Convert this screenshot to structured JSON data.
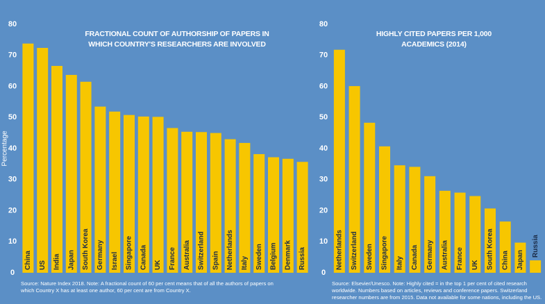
{
  "chart_data": [
    {
      "type": "bar",
      "title": "FRACTIONAL COUNT OF AUTHORSHIP OF PAPERS IN WHICH COUNTRY'S RESEARCHERS ARE INVOLVED",
      "ylabel": "Percentage",
      "categories": [
        "China",
        "US",
        "India",
        "Japan",
        "South Korea",
        "Germany",
        "Israel",
        "Singapore",
        "Canada",
        "UK",
        "France",
        "Australia",
        "Switzerland",
        "Spain",
        "Netherlands",
        "Italy",
        "Sweden",
        "Belgium",
        "Denmark",
        "Russia"
      ],
      "values": [
        73.8,
        72.4,
        66.6,
        63.7,
        61.5,
        53.5,
        51.9,
        50.8,
        50.3,
        50.2,
        46.6,
        45.4,
        45.3,
        45,
        43,
        41.8,
        38.2,
        37.2,
        36.7,
        35.7
      ],
      "color": "#f7c600",
      "ylim": [
        0,
        80
      ],
      "yticks": [
        0,
        10,
        20,
        30,
        40,
        50,
        60,
        70,
        80
      ],
      "source": "Source: Nature Index 2018. Note: A fractional count of 60 per cent means that of all the authors of papers on which Country X has at least one author, 60 per cent are from Country X."
    },
    {
      "type": "bar",
      "title": "HIGHLY CITED PAPERS PER 1,000 ACADEMICS (2014)",
      "categories": [
        "Netherlands",
        "Switzerland",
        "Sweden",
        "Singapore",
        "Italy",
        "Canada",
        "Germany",
        "Australia",
        "France",
        "UK",
        "South Korea",
        "China",
        "Japan",
        "Russia"
      ],
      "values": [
        71.8,
        60.1,
        48.3,
        40.7,
        34.6,
        34.1,
        31.1,
        26.4,
        25.8,
        24.7,
        20.7,
        16.5,
        9.7,
        4
      ],
      "color": "#f7c600",
      "ylim": [
        0,
        80
      ],
      "yticks": [
        0,
        10,
        20,
        30,
        40,
        50,
        60,
        70,
        80
      ],
      "source": "Source: Elsevier/Unesco. Note: Highly cited = in the top 1 per cent of cited research worldwide. Numbers based on articles, reviews and conference papers. Switzerland researcher numbers are from 2015. Data not available for some nations, including the US."
    }
  ]
}
